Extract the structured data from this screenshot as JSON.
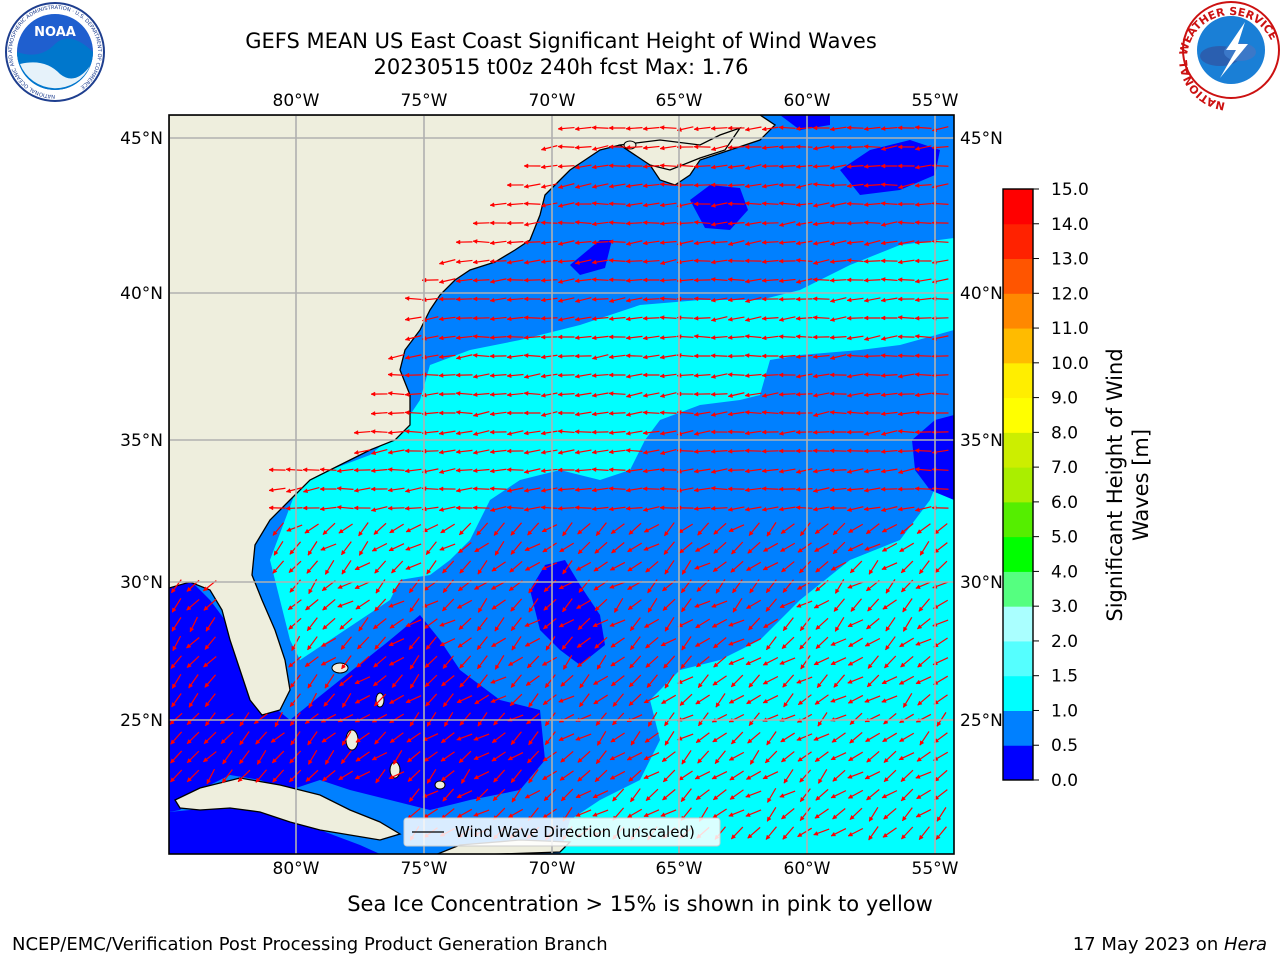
{
  "header": {
    "title_line1": "GEFS MEAN US East Coast Significant Height of Wind Waves",
    "title_line2": "20230515 t00z 240h fcst   Max: 1.76"
  },
  "logos": {
    "left": {
      "name": "noaa-logo",
      "text": "NOAA",
      "ring_text": "NATIONAL OCEANIC AND ATMOSPHERIC ADMINISTRATION · U.S. DEPARTMENT OF COMMERCE"
    },
    "right": {
      "name": "nws-logo",
      "ring_text": "NATIONAL WEATHER SERVICE"
    }
  },
  "map": {
    "lon_ticks": [
      "80°W",
      "75°W",
      "70°W",
      "65°W",
      "60°W",
      "55°W"
    ],
    "lat_ticks": [
      "45°N",
      "40°N",
      "35°N",
      "30°N",
      "25°N"
    ],
    "legend_label": "Wind Wave Direction (unscaled)",
    "colors": {
      "land": "#eeeedd",
      "ocean_le_05": "#0000ff",
      "ocean_05_1": "#0080ff",
      "ocean_1_15": "#00ffff",
      "arrows": "#ff0000",
      "grid": "#b0b0b0"
    }
  },
  "colorbar": {
    "label_line1": "Significant Height of Wind",
    "label_line2": "Waves [m]",
    "ticks": [
      "0.0",
      "0.5",
      "1.0",
      "1.5",
      "2.0",
      "3.0",
      "4.0",
      "5.0",
      "6.0",
      "7.0",
      "8.0",
      "9.0",
      "10.0",
      "11.0",
      "12.0",
      "13.0",
      "14.0",
      "15.0"
    ],
    "colors": [
      "#0000ff",
      "#0080ff",
      "#00ffff",
      "#55ffff",
      "#aaffff",
      "#55ff80",
      "#00ff00",
      "#55ee00",
      "#aaee00",
      "#ccee00",
      "#ffff00",
      "#ffee00",
      "#ffbb00",
      "#ff8800",
      "#ff5500",
      "#ff2200",
      "#ff0000"
    ]
  },
  "footer": {
    "note": "Sea Ice Concentration > 15% is shown in pink to yellow",
    "credit": "NCEP/EMC/Verification Post Processing Product Generation Branch",
    "date": "17 May 2023 on ",
    "machine": "Hera"
  }
}
